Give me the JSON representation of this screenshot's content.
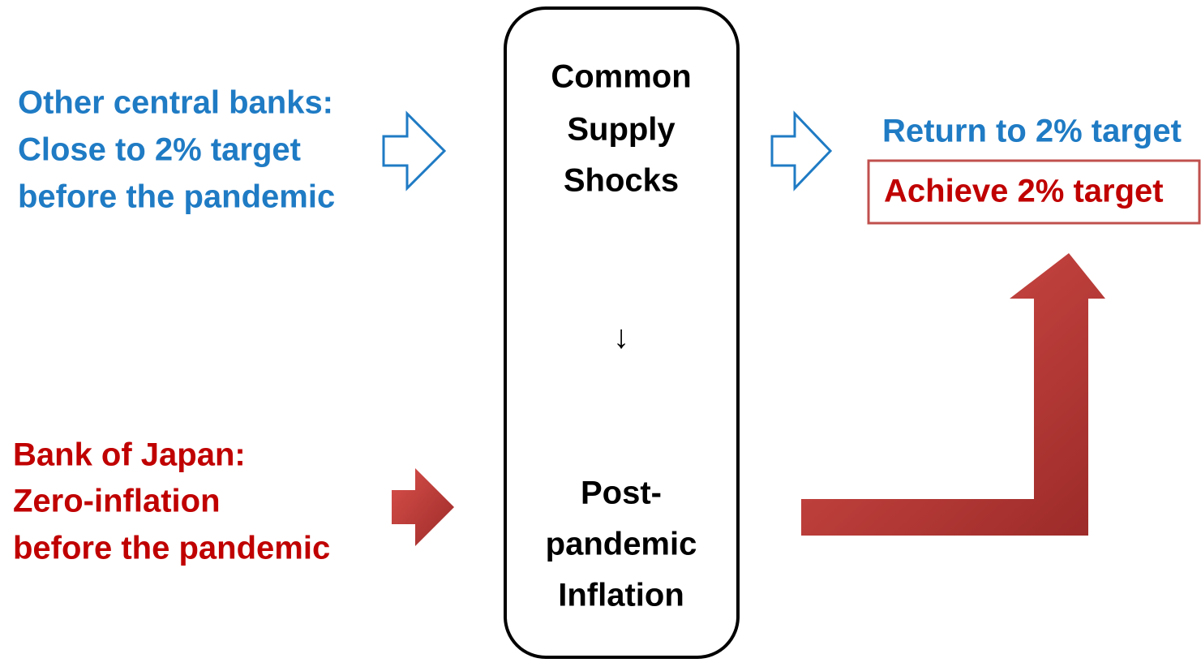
{
  "left_top": {
    "lines": [
      "Other central banks:",
      "Close to 2% target",
      "before the pandemic"
    ]
  },
  "left_bottom": {
    "lines": [
      "Bank of Japan:",
      "Zero-inflation",
      "before the pandemic"
    ]
  },
  "center": {
    "top_lines": [
      "Common",
      "Supply",
      "Shocks"
    ],
    "arrow": "↓",
    "bottom_lines": [
      "Post-",
      "pandemic",
      "Inflation"
    ]
  },
  "right": {
    "return_text": "Return to 2% target",
    "achieve_text": "Achieve 2% target"
  }
}
